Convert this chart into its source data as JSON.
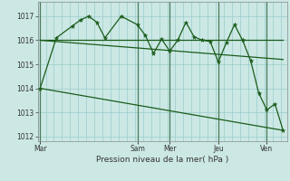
{
  "bg_color": "#cce8e4",
  "grid_color": "#99cccc",
  "line_color": "#1a5c1a",
  "xlabel": "Pression niveau de la mer( hPa )",
  "ylim": [
    1011.8,
    1017.6
  ],
  "yticks": [
    1012,
    1013,
    1014,
    1015,
    1016,
    1017
  ],
  "xtick_labels": [
    "Mar",
    "Sam",
    "Mer",
    "Jeu",
    "Ven"
  ],
  "xtick_pos": [
    0,
    12,
    16,
    22,
    28
  ],
  "vline_pos": [
    0,
    12,
    16,
    22,
    28
  ],
  "xlim": [
    -0.3,
    30.5
  ],
  "series_main": {
    "x": [
      0,
      2,
      4,
      5,
      6,
      7,
      8,
      10,
      12,
      13,
      14,
      15,
      16,
      17,
      18,
      19,
      20,
      21,
      22,
      23,
      24,
      25,
      26,
      27,
      28,
      29,
      30
    ],
    "y": [
      1014.0,
      1016.1,
      1016.6,
      1016.85,
      1017.0,
      1016.75,
      1016.1,
      1017.0,
      1016.65,
      1016.2,
      1015.45,
      1016.05,
      1015.55,
      1016.0,
      1016.75,
      1016.15,
      1016.0,
      1015.95,
      1015.1,
      1015.9,
      1016.65,
      1016.0,
      1015.15,
      1013.8,
      1013.1,
      1013.35,
      1012.25
    ]
  },
  "trend1": {
    "x": [
      0,
      30
    ],
    "y": [
      1016.0,
      1016.0
    ]
  },
  "trend2": {
    "x": [
      0,
      30
    ],
    "y": [
      1016.0,
      1015.2
    ]
  },
  "trend3": {
    "x": [
      0,
      30
    ],
    "y": [
      1014.0,
      1012.25
    ]
  }
}
